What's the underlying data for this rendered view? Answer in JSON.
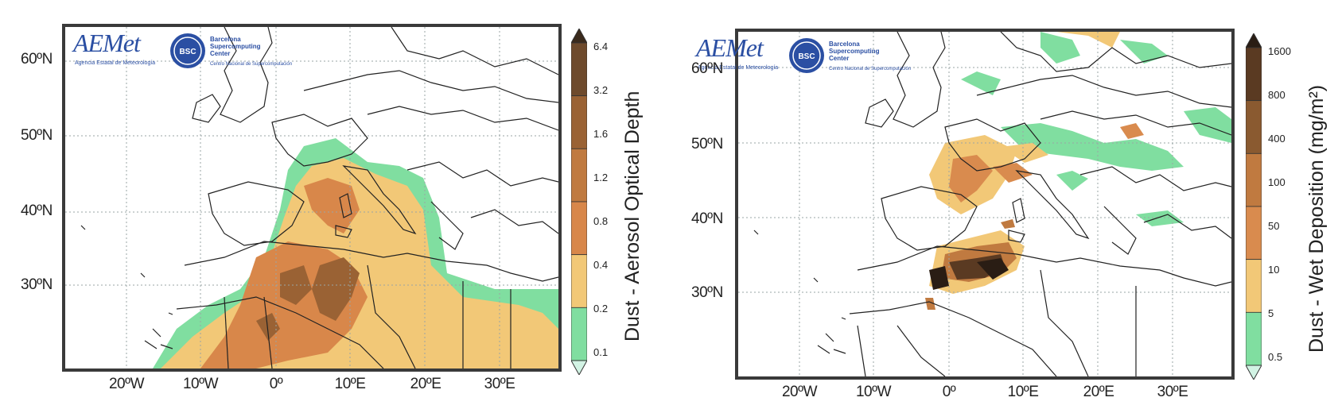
{
  "panels": [
    {
      "colorbar_title": "Dust - Aerosol Optical Depth",
      "colorbar_ticks": [
        "6.4",
        "3.2",
        "1.6",
        "1.2",
        "0.8",
        "0.4",
        "0.2",
        "0.1"
      ],
      "colorbar_colors": [
        "#3a2a1c",
        "#6e4a2c",
        "#9a6234",
        "#c07a40",
        "#d8874a",
        "#f2c877",
        "#80dea0",
        "#d2f3e4"
      ],
      "lat_labels": [
        "60ºN",
        "50ºN",
        "40ºN",
        "30ºN"
      ],
      "lon_labels": [
        "20ºW",
        "10ºW",
        "0º",
        "10ºE",
        "20ºE",
        "30ºE"
      ]
    },
    {
      "colorbar_title": "Dust - Wet Deposition (mg/m²)",
      "colorbar_ticks": [
        "1600",
        "800",
        "400",
        "100",
        "50",
        "10",
        "5",
        "0.5"
      ],
      "colorbar_colors": [
        "#2a1d14",
        "#5a3a22",
        "#8a5a30",
        "#c07a40",
        "#d98b4e",
        "#f2c877",
        "#80dea0",
        "#d2f3e4"
      ],
      "lat_labels": [
        "60ºN",
        "50ºN",
        "40ºN",
        "30ºN"
      ],
      "lon_labels": [
        "20ºW",
        "10ºW",
        "0º",
        "10ºE",
        "20ºE",
        "30ºE"
      ]
    }
  ],
  "logos": {
    "aemet_name": "AEMet",
    "aemet_sub": "Agencia Estatal de Meteorología",
    "bsc_badge": "BSC",
    "bsc_name": "Barcelona Supercomputing Center",
    "bsc_sub": "Centro Nacional de Supercomputación"
  },
  "colors": {
    "frame": "#3a3a3a",
    "grid": "#9aa5a5",
    "coast": "#222222",
    "logo_blue": "#2b4fa3"
  }
}
